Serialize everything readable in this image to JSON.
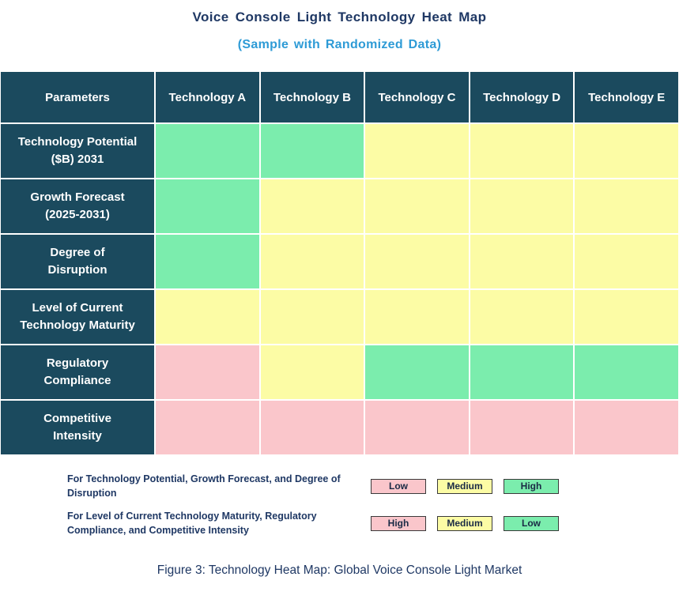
{
  "title": "Voice Console Light Technology Heat Map",
  "subtitle": "(Sample with Randomized Data)",
  "caption": "Figure 3: Technology Heat Map: Global Voice Console Light Market",
  "colors": {
    "navy": "#1B4A5E",
    "title_navy": "#1F3864",
    "subtitle_blue": "#2E9BD6",
    "green": "#7BEDAD",
    "yellow": "#FCFCA5",
    "pink": "#FAC6CB"
  },
  "table": {
    "header": [
      "Parameters",
      "Technology A",
      "Technology B",
      "Technology C",
      "Technology D",
      "Technology E"
    ],
    "rows": [
      {
        "label": "Technology Potential\n($B) 2031",
        "cells": [
          "green",
          "green",
          "yellow",
          "yellow",
          "yellow"
        ]
      },
      {
        "label": "Growth Forecast\n(2025-2031)",
        "cells": [
          "green",
          "yellow",
          "yellow",
          "yellow",
          "yellow"
        ]
      },
      {
        "label": "Degree of\nDisruption",
        "cells": [
          "green",
          "yellow",
          "yellow",
          "yellow",
          "yellow"
        ]
      },
      {
        "label": "Level of Current\nTechnology Maturity",
        "cells": [
          "yellow",
          "yellow",
          "yellow",
          "yellow",
          "yellow"
        ]
      },
      {
        "label": "Regulatory\nCompliance",
        "cells": [
          "pink",
          "yellow",
          "green",
          "green",
          "green"
        ]
      },
      {
        "label": "Competitive\nIntensity",
        "cells": [
          "pink",
          "pink",
          "pink",
          "pink",
          "pink"
        ]
      }
    ]
  },
  "legend": [
    {
      "text": "For Technology Potential, Growth Forecast, and Degree of Disruption",
      "items": [
        {
          "label": "Low",
          "color": "pink"
        },
        {
          "label": "Medium",
          "color": "yellow"
        },
        {
          "label": "High",
          "color": "green"
        }
      ]
    },
    {
      "text": "For Level of Current Technology Maturity, Regulatory Compliance, and Competitive Intensity",
      "items": [
        {
          "label": "High",
          "color": "pink"
        },
        {
          "label": "Medium",
          "color": "yellow"
        },
        {
          "label": "Low",
          "color": "green"
        }
      ]
    }
  ],
  "chart_data": {
    "type": "heatmap",
    "title": "Voice Console Light Technology Heat Map",
    "subtitle": "(Sample with Randomized Data)",
    "columns": [
      "Technology A",
      "Technology B",
      "Technology C",
      "Technology D",
      "Technology E"
    ],
    "rows": [
      "Technology Potential ($B) 2031",
      "Growth Forecast (2025-2031)",
      "Degree of Disruption",
      "Level of Current Technology Maturity",
      "Regulatory Compliance",
      "Competitive Intensity"
    ],
    "cell_colors": [
      [
        "green",
        "green",
        "yellow",
        "yellow",
        "yellow"
      ],
      [
        "green",
        "yellow",
        "yellow",
        "yellow",
        "yellow"
      ],
      [
        "green",
        "yellow",
        "yellow",
        "yellow",
        "yellow"
      ],
      [
        "yellow",
        "yellow",
        "yellow",
        "yellow",
        "yellow"
      ],
      [
        "pink",
        "yellow",
        "green",
        "green",
        "green"
      ],
      [
        "pink",
        "pink",
        "pink",
        "pink",
        "pink"
      ]
    ],
    "ratings": [
      [
        "High",
        "High",
        "Medium",
        "Medium",
        "Medium"
      ],
      [
        "High",
        "Medium",
        "Medium",
        "Medium",
        "Medium"
      ],
      [
        "High",
        "Medium",
        "Medium",
        "Medium",
        "Medium"
      ],
      [
        "Medium",
        "Medium",
        "Medium",
        "Medium",
        "Medium"
      ],
      [
        "High",
        "Medium",
        "Low",
        "Low",
        "Low"
      ],
      [
        "High",
        "High",
        "High",
        "High",
        "High"
      ]
    ],
    "color_meaning": {
      "rows_potential_growth_disruption": {
        "pink": "Low",
        "yellow": "Medium",
        "green": "High"
      },
      "rows_maturity_regulatory_competitive": {
        "pink": "High",
        "yellow": "Medium",
        "green": "Low"
      }
    },
    "legend_position": "bottom"
  }
}
